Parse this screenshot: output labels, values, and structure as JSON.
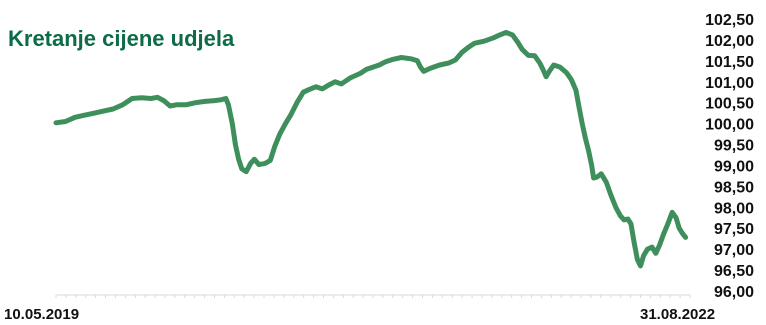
{
  "chart_data": {
    "type": "line",
    "title": "Kretanje cijene udjela",
    "x_start_label": "10.05.2019",
    "x_end_label": "31.08.2022",
    "xlabel": "",
    "ylabel": "",
    "ylim": [
      96.0,
      102.5
    ],
    "y_ticks": [
      "102,50",
      "102,00",
      "101,50",
      "101,00",
      "100,50",
      "100,00",
      "99,50",
      "99,00",
      "98,50",
      "98,00",
      "97,50",
      "97,00",
      "96,50",
      "96,00"
    ],
    "y_tick_values": [
      102.5,
      102.0,
      101.5,
      101.0,
      100.5,
      100.0,
      99.5,
      99.0,
      98.5,
      98.0,
      97.5,
      97.0,
      96.5,
      96.0
    ],
    "legend": "none",
    "grid": false,
    "colors": {
      "line": "#3f8f5c",
      "title": "#0d6b47",
      "axis": "#d8d8d8"
    },
    "series": [
      {
        "name": "",
        "points": [
          [
            0,
            100.02
          ],
          [
            1.5,
            100.05
          ],
          [
            3,
            100.15
          ],
          [
            4.5,
            100.2
          ],
          [
            6,
            100.25
          ],
          [
            7.5,
            100.3
          ],
          [
            9,
            100.35
          ],
          [
            10.5,
            100.45
          ],
          [
            12,
            100.6
          ],
          [
            13.5,
            100.62
          ],
          [
            15,
            100.6
          ],
          [
            16,
            100.63
          ],
          [
            17,
            100.55
          ],
          [
            18,
            100.42
          ],
          [
            19,
            100.45
          ],
          [
            20.5,
            100.45
          ],
          [
            22,
            100.5
          ],
          [
            23.5,
            100.53
          ],
          [
            25,
            100.55
          ],
          [
            26,
            100.57
          ],
          [
            26.8,
            100.6
          ],
          [
            27.2,
            100.45
          ],
          [
            27.8,
            100.0
          ],
          [
            28.3,
            99.5
          ],
          [
            28.8,
            99.15
          ],
          [
            29.3,
            98.92
          ],
          [
            30,
            98.85
          ],
          [
            30.7,
            99.05
          ],
          [
            31.3,
            99.15
          ],
          [
            32,
            99.02
          ],
          [
            33,
            99.05
          ],
          [
            33.8,
            99.12
          ],
          [
            34.5,
            99.45
          ],
          [
            35.3,
            99.75
          ],
          [
            36.2,
            100.0
          ],
          [
            37,
            100.2
          ],
          [
            38,
            100.5
          ],
          [
            39,
            100.75
          ],
          [
            40,
            100.82
          ],
          [
            41,
            100.88
          ],
          [
            42,
            100.83
          ],
          [
            43,
            100.92
          ],
          [
            44,
            101.0
          ],
          [
            45,
            100.95
          ],
          [
            46.5,
            101.1
          ],
          [
            48,
            101.2
          ],
          [
            49,
            101.3
          ],
          [
            50,
            101.35
          ],
          [
            51,
            101.4
          ],
          [
            52,
            101.48
          ],
          [
            53,
            101.53
          ],
          [
            54.5,
            101.58
          ],
          [
            56,
            101.55
          ],
          [
            57,
            101.5
          ],
          [
            57.5,
            101.35
          ],
          [
            58,
            101.25
          ],
          [
            59,
            101.32
          ],
          [
            60.5,
            101.4
          ],
          [
            62,
            101.45
          ],
          [
            63,
            101.52
          ],
          [
            64,
            101.7
          ],
          [
            65,
            101.82
          ],
          [
            66,
            101.92
          ],
          [
            67.5,
            101.97
          ],
          [
            69,
            102.05
          ],
          [
            70,
            102.12
          ],
          [
            71,
            102.18
          ],
          [
            72,
            102.12
          ],
          [
            72.8,
            101.95
          ],
          [
            73.5,
            101.78
          ],
          [
            74.5,
            101.63
          ],
          [
            75.5,
            101.62
          ],
          [
            76.3,
            101.45
          ],
          [
            76.8,
            101.3
          ],
          [
            77.3,
            101.12
          ],
          [
            77.8,
            101.25
          ],
          [
            78.5,
            101.4
          ],
          [
            79.5,
            101.35
          ],
          [
            80.5,
            101.22
          ],
          [
            81.3,
            101.05
          ],
          [
            82,
            100.8
          ],
          [
            82.5,
            100.4
          ],
          [
            83,
            100.0
          ],
          [
            83.5,
            99.65
          ],
          [
            84,
            99.35
          ],
          [
            84.5,
            99.0
          ],
          [
            84.8,
            98.7
          ],
          [
            85.3,
            98.72
          ],
          [
            86,
            98.8
          ],
          [
            86.8,
            98.6
          ],
          [
            87.5,
            98.3
          ],
          [
            88.3,
            98.0
          ],
          [
            89,
            97.8
          ],
          [
            89.6,
            97.7
          ],
          [
            90.2,
            97.72
          ],
          [
            90.7,
            97.6
          ],
          [
            91.2,
            97.15
          ],
          [
            91.7,
            96.75
          ],
          [
            92.2,
            96.6
          ],
          [
            92.7,
            96.85
          ],
          [
            93.3,
            97.0
          ],
          [
            94,
            97.05
          ],
          [
            94.6,
            96.9
          ],
          [
            95.2,
            97.1
          ],
          [
            95.8,
            97.35
          ],
          [
            96.5,
            97.6
          ],
          [
            97.2,
            97.88
          ],
          [
            97.8,
            97.75
          ],
          [
            98.3,
            97.5
          ],
          [
            98.8,
            97.38
          ],
          [
            99.3,
            97.28
          ]
        ]
      }
    ]
  }
}
